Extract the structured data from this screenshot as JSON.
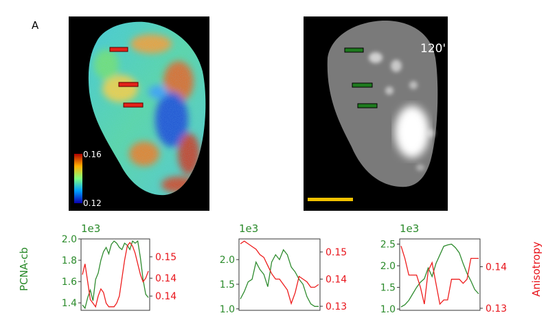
{
  "figure": {
    "panel_label": "A",
    "time_label": "120'",
    "colorbar": {
      "max_label": "0.16",
      "min_label": "0.12"
    }
  },
  "colors": {
    "left_axis": "#2a8a2a",
    "right_axis": "#e8141b",
    "roi_red": "#e32219",
    "roi_green": "#1e7a1e",
    "scale_bar": "#f2c200"
  },
  "chart_data": [
    {
      "type": "line",
      "left_axis": {
        "label": "PCNA-cb",
        "multiplier": "1e3",
        "ylim": [
          1.33,
          2.0
        ],
        "ticks": [
          "1.4",
          "1.6",
          "1.8",
          "2.0"
        ],
        "tick_values": [
          1.4,
          1.6,
          1.8,
          2.0
        ]
      },
      "right_axis": {
        "label": "",
        "ylim": [
          0.133,
          0.153
        ],
        "ticks": [
          "0.14",
          "0.14",
          "0.15"
        ],
        "tick_values": [
          0.137,
          0.142,
          0.148
        ]
      },
      "series": [
        {
          "axis": "left",
          "values": [
            1.38,
            1.35,
            1.45,
            1.52,
            1.42,
            1.62,
            1.68,
            1.8,
            1.88,
            1.92,
            1.86,
            1.95,
            1.98,
            1.96,
            1.92,
            1.9,
            1.96,
            1.94,
            1.9,
            1.98,
            1.96,
            1.98,
            1.82,
            1.62,
            1.48,
            1.45
          ]
        },
        {
          "axis": "right",
          "values": [
            0.143,
            0.146,
            0.141,
            0.136,
            0.135,
            0.134,
            0.137,
            0.139,
            0.138,
            0.135,
            0.134,
            0.134,
            0.134,
            0.135,
            0.137,
            0.142,
            0.147,
            0.151,
            0.152,
            0.151,
            0.149,
            0.146,
            0.143,
            0.141,
            0.142,
            0.144
          ]
        }
      ]
    },
    {
      "type": "line",
      "left_axis": {
        "label": "",
        "multiplier": "1e3",
        "ylim": [
          0.97,
          2.42
        ],
        "ticks": [
          "1.0",
          "1.5",
          "2.0"
        ],
        "tick_values": [
          1.0,
          1.5,
          2.0
        ]
      },
      "right_axis": {
        "label": "",
        "ylim": [
          0.1285,
          0.1548
        ],
        "ticks": [
          "0.13",
          "0.14",
          "0.15"
        ],
        "tick_values": [
          0.13,
          0.14,
          0.15
        ]
      },
      "series": [
        {
          "axis": "left",
          "values": [
            1.2,
            1.35,
            1.55,
            1.6,
            1.95,
            1.8,
            1.7,
            1.45,
            1.95,
            2.1,
            2.0,
            2.2,
            2.1,
            1.85,
            1.75,
            1.6,
            1.5,
            1.25,
            1.1,
            1.05,
            1.05
          ]
        },
        {
          "axis": "right",
          "values": [
            0.153,
            0.154,
            0.153,
            0.152,
            0.151,
            0.149,
            0.148,
            0.145,
            0.142,
            0.14,
            0.14,
            0.138,
            0.136,
            0.131,
            0.135,
            0.141,
            0.14,
            0.139,
            0.137,
            0.137,
            0.138
          ]
        }
      ]
    },
    {
      "type": "line",
      "left_axis": {
        "label": "",
        "multiplier": "1e3",
        "ylim": [
          0.97,
          2.62
        ],
        "ticks": [
          "1.0",
          "1.5",
          "2.0",
          "2.5"
        ],
        "tick_values": [
          1.0,
          1.5,
          2.0,
          2.5
        ]
      },
      "right_axis": {
        "label": "Anisotropy",
        "ylim": [
          0.1295,
          0.1467
        ],
        "ticks": [
          "0.13",
          "0.14"
        ],
        "tick_values": [
          0.13,
          0.14
        ]
      },
      "series": [
        {
          "axis": "left",
          "values": [
            1.05,
            1.1,
            1.2,
            1.35,
            1.5,
            1.62,
            1.7,
            1.95,
            1.75,
            2.05,
            2.25,
            2.45,
            2.48,
            2.5,
            2.42,
            2.3,
            2.05,
            1.82,
            1.65,
            1.45,
            1.35
          ]
        },
        {
          "axis": "right",
          "values": [
            0.145,
            0.142,
            0.138,
            0.138,
            0.138,
            0.135,
            0.131,
            0.139,
            0.141,
            0.136,
            0.131,
            0.132,
            0.132,
            0.137,
            0.137,
            0.137,
            0.136,
            0.137,
            0.142,
            0.142,
            0.142
          ]
        }
      ]
    }
  ]
}
